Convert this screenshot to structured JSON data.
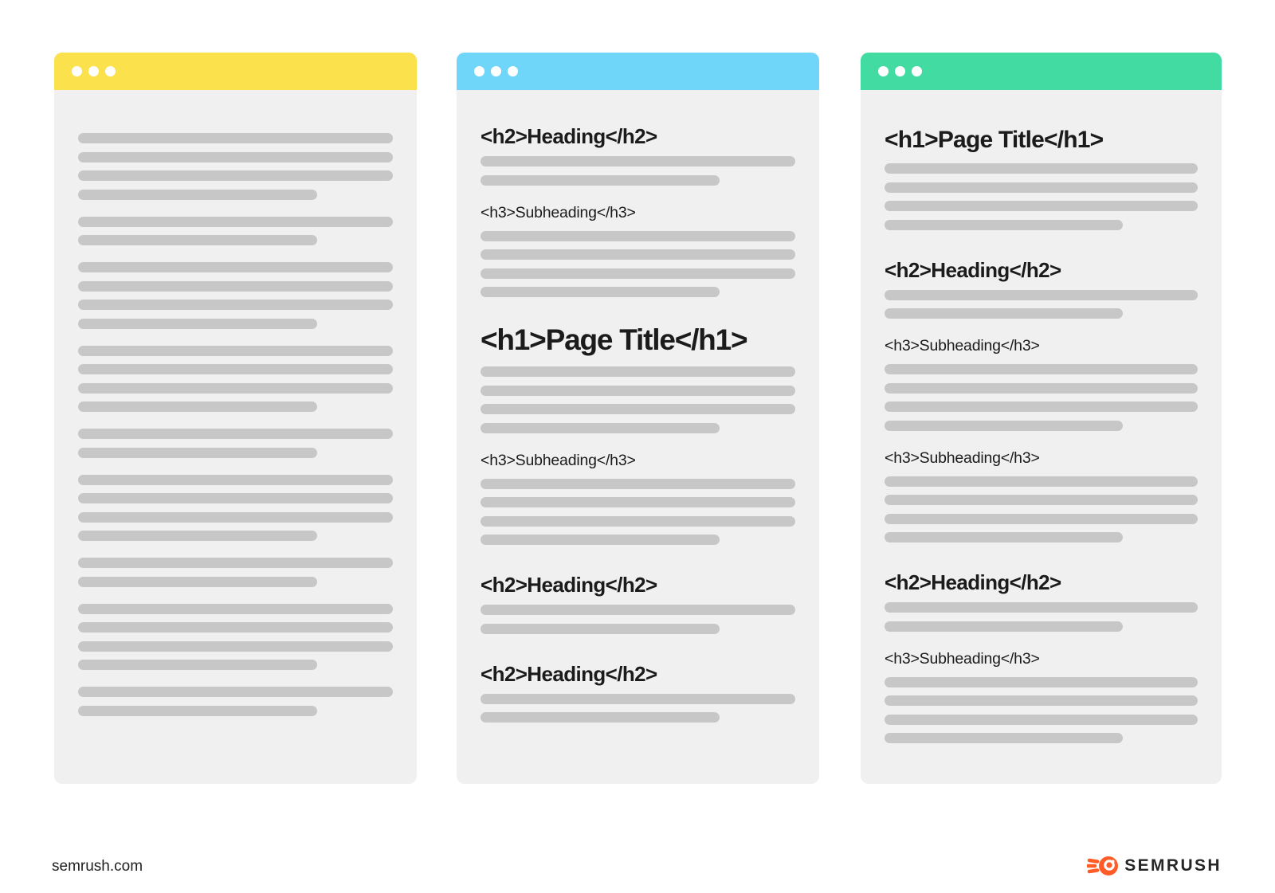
{
  "colors": {
    "page_background": "#FFFFFF",
    "titlebar_yellow": "#FBE14B",
    "titlebar_blue": "#70D6F9",
    "titlebar_green": "#42DCA3",
    "window_body": "#F0F0F1",
    "placeholder_bar": "#C7C7C7",
    "heading_text": "#1B1B1B",
    "brand_orange": "#FF5C28"
  },
  "icons": {
    "window_controls": "window-control-dot",
    "footer_logo": "semrush-flame-icon"
  },
  "panels": [
    {
      "id": "yellow",
      "titlebar_color": "#FBE14B",
      "dots": 3,
      "items": [
        {
          "type": "para",
          "lines": [
            "full",
            "full",
            "full",
            "short"
          ]
        },
        {
          "type": "para",
          "lines": [
            "full",
            "short"
          ]
        },
        {
          "type": "para",
          "lines": [
            "full",
            "full",
            "full",
            "short"
          ]
        },
        {
          "type": "para",
          "lines": [
            "full",
            "full",
            "full",
            "short"
          ]
        },
        {
          "type": "para",
          "lines": [
            "full",
            "short"
          ]
        },
        {
          "type": "para",
          "lines": [
            "full",
            "full",
            "full",
            "short"
          ]
        },
        {
          "type": "para",
          "lines": [
            "full",
            "short"
          ]
        },
        {
          "type": "para",
          "lines": [
            "full",
            "full",
            "full",
            "short"
          ]
        },
        {
          "type": "para",
          "lines": [
            "full",
            "short"
          ]
        }
      ]
    },
    {
      "id": "blue",
      "titlebar_color": "#70D6F9",
      "dots": 3,
      "items": [
        {
          "type": "h2",
          "text": "<h2>Heading</h2>"
        },
        {
          "type": "para",
          "lines": [
            "full",
            "short"
          ]
        },
        {
          "type": "h3",
          "text": "<h3>Subheading</h3>"
        },
        {
          "type": "para",
          "lines": [
            "full",
            "full",
            "full",
            "short"
          ]
        },
        {
          "type": "h1",
          "text": "<h1>Page Title</h1>"
        },
        {
          "type": "para",
          "lines": [
            "full",
            "full",
            "full",
            "short"
          ]
        },
        {
          "type": "h3",
          "text": "<h3>Subheading</h3>"
        },
        {
          "type": "para",
          "lines": [
            "full",
            "full",
            "full",
            "short"
          ]
        },
        {
          "type": "h2",
          "text": "<h2>Heading</h2>"
        },
        {
          "type": "para",
          "lines": [
            "full",
            "short"
          ]
        },
        {
          "type": "h2",
          "text": "<h2>Heading</h2>"
        },
        {
          "type": "para",
          "lines": [
            "full",
            "short"
          ]
        }
      ]
    },
    {
      "id": "green",
      "titlebar_color": "#42DCA3",
      "dots": 3,
      "items": [
        {
          "type": "h1",
          "text": "<h1>Page Title</h1>"
        },
        {
          "type": "para",
          "lines": [
            "full",
            "full",
            "full",
            "short"
          ]
        },
        {
          "type": "h2",
          "text": "<h2>Heading</h2>"
        },
        {
          "type": "para",
          "lines": [
            "full",
            "short"
          ]
        },
        {
          "type": "h3",
          "text": "<h3>Subheading</h3>"
        },
        {
          "type": "para",
          "lines": [
            "full",
            "full",
            "full",
            "short"
          ]
        },
        {
          "type": "h3",
          "text": "<h3>Subheading</h3>"
        },
        {
          "type": "para",
          "lines": [
            "full",
            "full",
            "full",
            "short"
          ]
        },
        {
          "type": "h2",
          "text": "<h2>Heading</h2>"
        },
        {
          "type": "para",
          "lines": [
            "full",
            "short"
          ]
        },
        {
          "type": "h3",
          "text": "<h3>Subheading</h3>"
        },
        {
          "type": "para",
          "lines": [
            "full",
            "full",
            "full",
            "short"
          ]
        }
      ]
    }
  ],
  "footer": {
    "site_label": "semrush.com",
    "brand_wordmark": "SEMRUSH"
  }
}
